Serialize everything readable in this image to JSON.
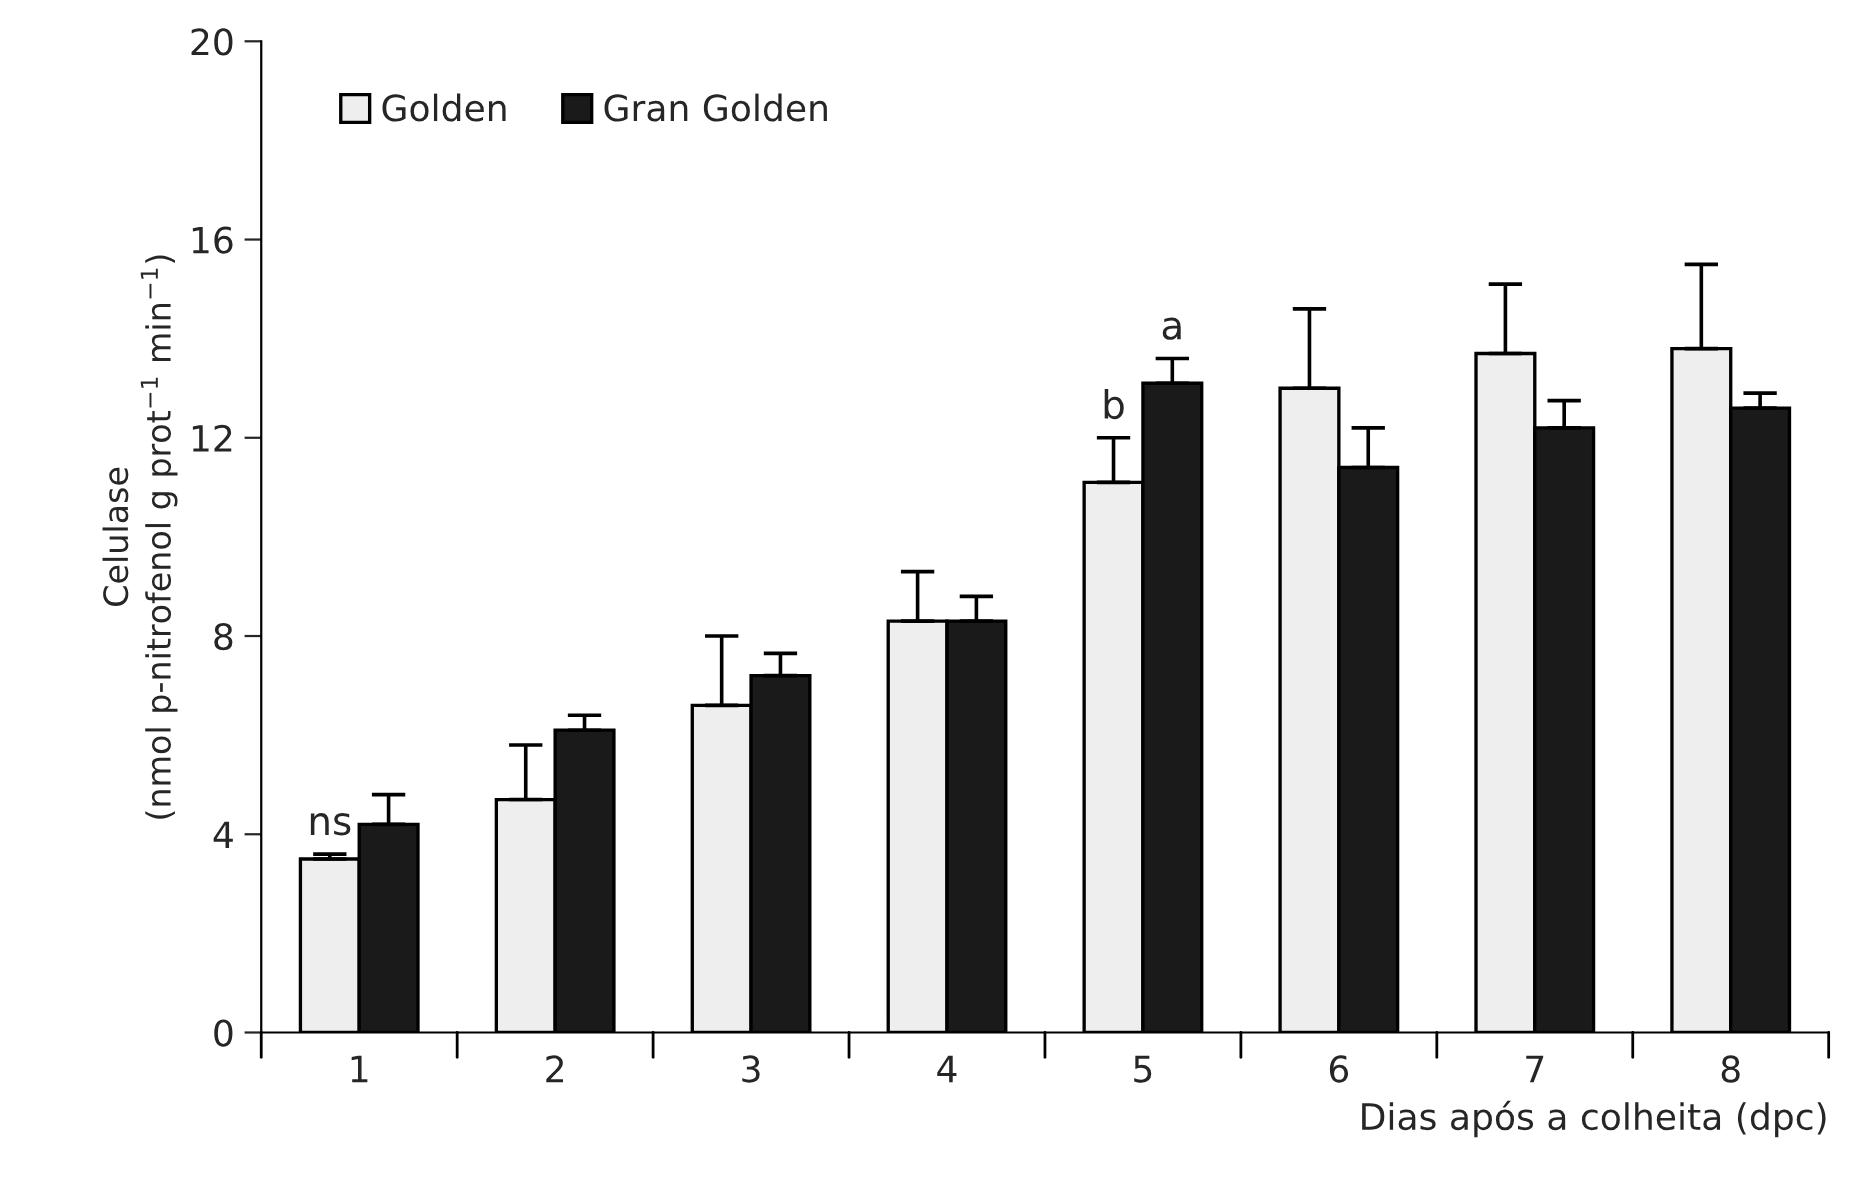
{
  "chart_data": {
    "type": "bar",
    "xlabel": "Dias após a colheita (dpc)",
    "ylabel": "Celulase\n(nmol p-nitrofenol g prot$^{−1}$ min$^{−1}$)",
    "categories": [
      "1",
      "2",
      "3",
      "4",
      "5",
      "6",
      "7",
      "8"
    ],
    "series": [
      {
        "name": "Golden",
        "color": "#eeeeee",
        "values": [
          3.5,
          4.7,
          6.6,
          8.3,
          11.1,
          13.0,
          13.7,
          13.8
        ],
        "errors": [
          0.1,
          1.1,
          1.4,
          1.0,
          0.9,
          1.6,
          1.4,
          1.7
        ]
      },
      {
        "name": "Gran Golden",
        "color": "#1a1a1a",
        "values": [
          4.2,
          6.1,
          7.2,
          8.3,
          13.1,
          11.4,
          12.2,
          12.6
        ],
        "errors": [
          0.6,
          0.3,
          0.45,
          0.5,
          0.5,
          0.8,
          0.55,
          0.3
        ]
      }
    ],
    "ylim": [
      0,
      20
    ],
    "yticks": [
      0,
      4,
      8,
      12,
      16,
      20
    ],
    "grid": false,
    "legend": "top left",
    "annotations": [
      {
        "text": "ns",
        "x": "1",
        "y": 3.5
      },
      {
        "text": "b",
        "x": "5",
        "y": 11.1
      },
      {
        "text": "a",
        "x": "5",
        "y": 13.1
      }
    ]
  }
}
